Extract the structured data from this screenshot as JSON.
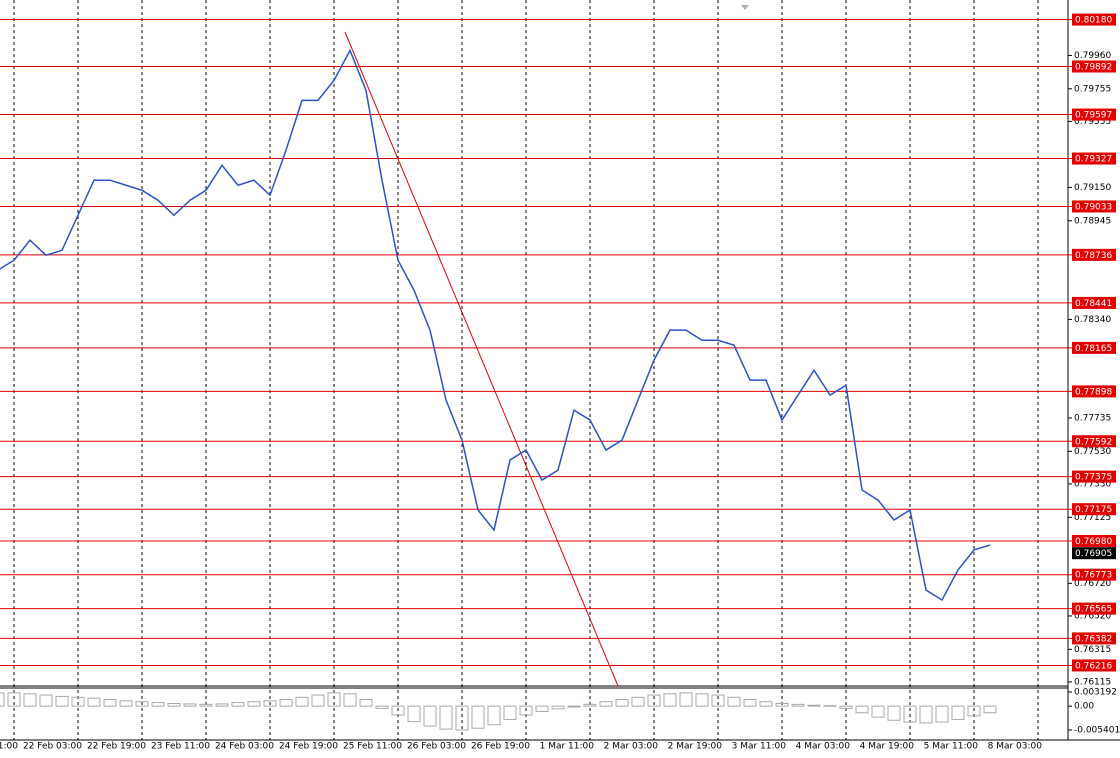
{
  "chart_data": {
    "type": "line",
    "categories": [
      null,
      "1:00",
      null,
      null,
      null,
      "22 Feb 03:00",
      null,
      null,
      null,
      "22 Feb 19:00",
      null,
      null,
      null,
      "23 Feb 11:00",
      null,
      null,
      null,
      "24 Feb 03:00",
      null,
      null,
      null,
      "24 Feb 19:00",
      null,
      null,
      null,
      "25 Feb 11:00",
      null,
      null,
      null,
      "26 Feb 03:00",
      null,
      null,
      null,
      "26 Feb 19:00",
      null,
      null,
      null,
      "1 Mar 11:00",
      null,
      null,
      null,
      "2 Mar 03:00",
      null,
      null,
      null,
      "2 Mar 19:00",
      null,
      null,
      null,
      "3 Mar 11:00",
      null,
      null,
      null,
      "4 Mar 03:00",
      null,
      null,
      null,
      "4 Mar 19:00",
      null,
      null,
      null,
      "5 Mar 11:00",
      null,
      null,
      null,
      "8 Mar 03:00"
    ],
    "values": [
      0.78642,
      0.78703,
      0.78826,
      0.78734,
      0.78764,
      0.78979,
      0.79194,
      0.79194,
      0.79163,
      0.79132,
      0.79071,
      0.78979,
      0.79071,
      0.79132,
      0.79286,
      0.79163,
      0.79194,
      0.79102,
      0.79378,
      0.79684,
      0.79684,
      0.79807,
      0.79991,
      0.79745,
      0.79194,
      0.78703,
      0.78519,
      0.78274,
      0.77845,
      0.77599,
      0.7717,
      0.77047,
      0.77477,
      0.77538,
      0.77354,
      0.77415,
      0.77783,
      0.77722,
      0.77538,
      0.77599,
      0.77845,
      0.7809,
      0.78274,
      0.78274,
      0.78212,
      0.78212,
      0.78182,
      0.77967,
      0.77967,
      0.77722,
      0.77875,
      0.78028,
      0.77875,
      0.77936,
      0.77293,
      0.77231,
      0.77109,
      0.7717,
      0.76679,
      0.76618,
      0.76802,
      0.76925,
      0.76955,
      null,
      null,
      null
    ],
    "color": "#2a52c8",
    "ylim": [
      0.7609,
      0.803
    ],
    "yticks": [
      {
        "value": 0.7996,
        "label": "0.79960"
      },
      0.79755,
      0.79555,
      {
        "value": 0.7915,
        "label": "0.79150"
      },
      0.78945,
      {
        "value": 0.7834,
        "label": "0.78340"
      },
      0.77735,
      {
        "value": 0.7753,
        "label": "0.77530"
      },
      {
        "value": 0.7733,
        "label": "0.77330"
      },
      0.77125,
      {
        "value": 0.7672,
        "label": "0.76720"
      },
      {
        "value": 0.7652,
        "label": "0.76520"
      },
      0.76315,
      0.76115
    ],
    "levels": [
      {
        "value": 0.8018,
        "label": "0.80180"
      },
      {
        "value": 0.79892,
        "label": "0.79892"
      },
      {
        "value": 0.79597,
        "label": "0.79597"
      },
      {
        "value": 0.79327,
        "label": "0.79327"
      },
      {
        "value": 0.79033,
        "label": "0.79033"
      },
      {
        "value": 0.78736,
        "label": "0.78736"
      },
      {
        "value": 0.78441,
        "label": "0.78441"
      },
      {
        "value": 0.78165,
        "label": "0.78165"
      },
      {
        "value": 0.77898,
        "label": "0.77898"
      },
      {
        "value": 0.77592,
        "label": "0.77592"
      },
      {
        "value": 0.77375,
        "label": "0.77375"
      },
      {
        "value": 0.77175,
        "label": "0.77175"
      },
      {
        "value": 0.7698,
        "label": "0.76980"
      },
      {
        "value": 0.76773,
        "label": "0.76773"
      },
      {
        "value": 0.76565,
        "label": "0.76565"
      },
      {
        "value": 0.76382,
        "label": "0.76382"
      },
      {
        "value": 0.76216,
        "label": "0.76216"
      }
    ],
    "level_color": "#e00000",
    "current_price": 0.76905,
    "oscillator": {
      "type": "bar",
      "values": [
        0.003,
        0.003,
        0.0028,
        0.0025,
        0.0022,
        0.002,
        0.0018,
        0.0015,
        0.0012,
        0.001,
        0.0008,
        0.0006,
        0.0005,
        0.0004,
        0.0005,
        0.0008,
        0.001,
        0.0012,
        0.0015,
        0.002,
        0.0025,
        0.003,
        0.0028,
        0.0015,
        -0.0005,
        -0.002,
        -0.0035,
        -0.0045,
        -0.0052,
        -0.0054,
        -0.005,
        -0.0042,
        -0.003,
        -0.002,
        -0.0012,
        -0.0006,
        -0.0002,
        0.0004,
        0.001,
        0.0015,
        0.002,
        0.0025,
        0.0028,
        0.003,
        0.0028,
        0.0025,
        0.002,
        0.0015,
        0.001,
        0.0006,
        0.0004,
        0.0002,
        0.0001,
        -0.0005,
        -0.0015,
        -0.0025,
        -0.0032,
        -0.0036,
        -0.0038,
        -0.0036,
        -0.003,
        -0.0022,
        -0.0015,
        null,
        null,
        null
      ],
      "color": "#a8a8a8",
      "ylim": [
        -0.00766,
        0.0041
      ],
      "yticks": [
        0.003192,
        {
          "value": 0,
          "label": "0.00"
        },
        -0.005401
      ]
    }
  }
}
